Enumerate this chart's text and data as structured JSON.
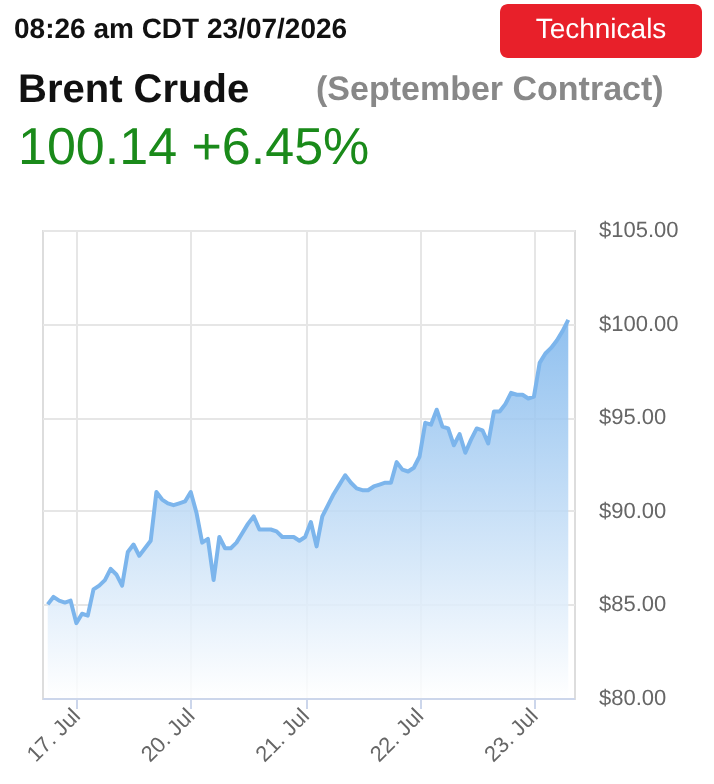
{
  "chart_data": {
    "type": "area",
    "title": "Brent Crude",
    "subtitle": "(September Contract)",
    "annotations": [
      "08:26 am CDT 23/07/2026",
      "Technicals",
      "100.14 +6.45%"
    ],
    "categories": [
      null,
      null,
      null,
      null,
      null,
      "17. Jul",
      null,
      null,
      null,
      null,
      null,
      null,
      null,
      null,
      null,
      null,
      null,
      null,
      null,
      null,
      null,
      null,
      null,
      null,
      null,
      "20. Jul",
      null,
      null,
      null,
      null,
      null,
      null,
      null,
      null,
      null,
      null,
      null,
      null,
      null,
      null,
      null,
      null,
      null,
      null,
      null,
      "21. Jul",
      null,
      null,
      null,
      null,
      null,
      null,
      null,
      null,
      null,
      null,
      null,
      null,
      null,
      null,
      null,
      null,
      null,
      null,
      null,
      "22. Jul",
      null,
      null,
      null,
      null,
      null,
      null,
      null,
      null,
      null,
      null,
      null,
      null,
      null,
      null,
      null,
      null,
      null,
      null,
      null,
      "23. Jul",
      null,
      null,
      null,
      null,
      null,
      null
    ],
    "series": [
      {
        "color": "#7cb5ec",
        "values": [
          85.0,
          85.4,
          85.2,
          85.1,
          85.2,
          84.0,
          84.5,
          84.4,
          85.8,
          86.0,
          86.3,
          86.9,
          86.6,
          86.0,
          87.8,
          88.2,
          87.6,
          88.0,
          88.4,
          91.0,
          90.6,
          90.4,
          90.3,
          90.4,
          90.5,
          91.0,
          89.9,
          88.3,
          88.5,
          86.3,
          88.6,
          88.0,
          88.0,
          88.3,
          88.8,
          89.3,
          89.7,
          89.0,
          89.0,
          89.0,
          88.9,
          88.6,
          88.6,
          88.6,
          88.4,
          88.6,
          89.4,
          88.1,
          89.7,
          90.3,
          90.9,
          91.4,
          91.9,
          91.5,
          91.2,
          91.1,
          91.1,
          91.3,
          91.4,
          91.5,
          91.5,
          92.6,
          92.2,
          92.1,
          92.3,
          92.9,
          94.7,
          94.6,
          95.4,
          94.5,
          94.4,
          93.5,
          94.1,
          93.1,
          93.8,
          94.4,
          94.3,
          93.6,
          95.3,
          95.3,
          95.7,
          96.3,
          96.2,
          96.2,
          96.0,
          96.1,
          97.9,
          98.4,
          98.7,
          99.1,
          99.6,
          100.2
        ]
      }
    ],
    "ylim": [
      80,
      105
    ],
    "yticks": [
      {
        "value": 80,
        "label": "$80.00"
      },
      {
        "value": 85,
        "label": "$85.00"
      },
      {
        "value": 90,
        "label": "$90.00"
      },
      {
        "value": 95,
        "label": "$95.00"
      },
      {
        "value": 100,
        "label": "$100.00"
      },
      {
        "value": 105,
        "label": "$105.00"
      }
    ],
    "grid": true,
    "marker": "none",
    "line_style": "solid"
  }
}
